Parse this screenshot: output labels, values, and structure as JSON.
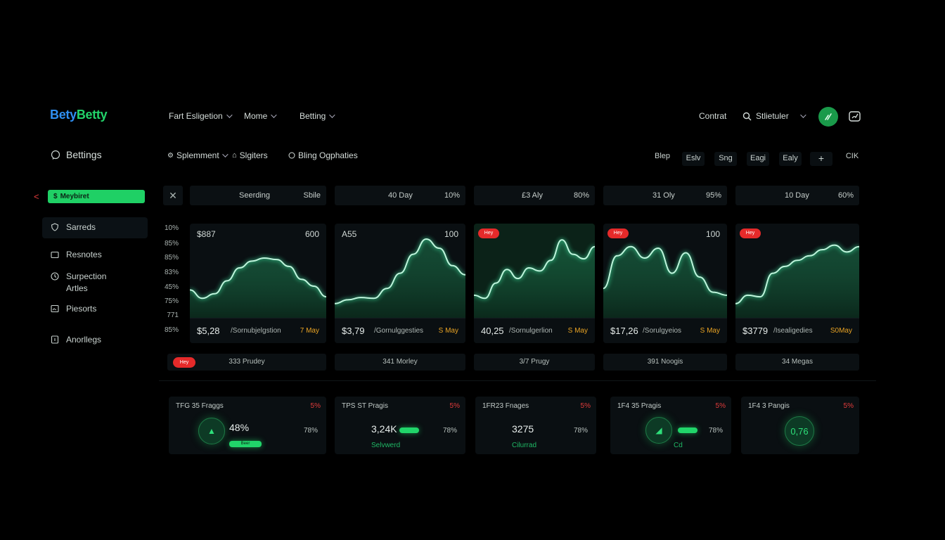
{
  "brand": {
    "part_a": "Bety",
    "part_b": "Betty",
    "color_a": "#2f8ff2",
    "color_b": "#22d36a"
  },
  "nav": {
    "items": [
      "Fart Esligetion",
      "Mome",
      "Betting"
    ]
  },
  "header": {
    "contact": "Contrat",
    "search_value": "Stlietuler",
    "avatar_icon": "leaf-icon",
    "message_icon": "chat-icon"
  },
  "sidebar": {
    "title": "Bettings",
    "active": "Meybiret",
    "items": [
      {
        "label": "Sarreds",
        "icon": "shield-icon"
      },
      {
        "label": "Resnotes",
        "icon": "folder-icon"
      },
      {
        "label": "Surpection\nArtles",
        "icon": "clock-icon"
      },
      {
        "label": "Piesorts",
        "icon": "image-icon"
      },
      {
        "label": "Anorllegs",
        "icon": "info-icon"
      }
    ]
  },
  "subheader": {
    "items": [
      "Splemment",
      "Slgiters",
      "Bling Ogphaties"
    ],
    "timeframes": [
      "Blep",
      "Eslv",
      "Sng",
      "Eagi",
      "Ealy",
      "+",
      "CIK"
    ]
  },
  "periods": [
    {
      "left": "Seerding",
      "right": "Sbile"
    },
    {
      "left": "40 Day",
      "right": "10%"
    },
    {
      "left": "£3 Aly",
      "right": "80%"
    },
    {
      "left": "31 Oly",
      "right": "95%"
    },
    {
      "left": "10 Day",
      "right": "60%"
    }
  ],
  "y_axis": [
    "10%",
    "85%",
    "85%",
    "83%",
    "45%",
    "75%",
    "771",
    "85%"
  ],
  "cards": [
    {
      "top_left": "$887",
      "top_right": "600",
      "badge": "",
      "value": "$5,28",
      "label": "/Sornubjelgstion",
      "other": "7 May",
      "curve": [
        0.33,
        0.22,
        0.28,
        0.45,
        0.62,
        0.71,
        0.75,
        0.73,
        0.64,
        0.47,
        0.38,
        0.24
      ]
    },
    {
      "top_left": "A55",
      "top_right": "100",
      "badge": "",
      "value": "$3,79",
      "label": "/Gornulggesties",
      "other": "S May",
      "curve": [
        0.15,
        0.2,
        0.23,
        0.22,
        0.35,
        0.55,
        0.8,
        1.0,
        0.88,
        0.65,
        0.53
      ]
    },
    {
      "top_left": "",
      "top_right": "",
      "badge": "Hey",
      "value": "40,25",
      "label": "/Sornulgerlion",
      "other": "S May",
      "curve": [
        0.26,
        0.22,
        0.42,
        0.6,
        0.48,
        0.62,
        0.58,
        0.72,
        0.99,
        0.8,
        0.74,
        0.9
      ]
    },
    {
      "top_left": "",
      "top_right": "100",
      "badge": "Hey",
      "value": "$17,26",
      "label": "/Sorulgyeios",
      "other": "S May",
      "curve": [
        0.35,
        0.78,
        0.9,
        0.75,
        0.88,
        0.55,
        0.82,
        0.5,
        0.3,
        0.26
      ]
    },
    {
      "top_left": "",
      "top_right": "",
      "badge": "Hey",
      "value": "$3779",
      "label": "/Isealigedies",
      "other": "S0May",
      "curve": [
        0.15,
        0.26,
        0.24,
        0.55,
        0.64,
        0.72,
        0.78,
        0.86,
        0.92,
        0.83,
        0.9
      ]
    }
  ],
  "labels": [
    "333 Prudey",
    "341 Morley",
    "3/7 Prugy",
    "391 Noogis",
    "34 Megas"
  ],
  "label_badge": "Hey",
  "bottom": [
    {
      "title": "TFG 35 Fraggs",
      "pct": "5%",
      "value": "48%",
      "right": "78%",
      "caption": "",
      "pill": true,
      "pill_label": "Beer",
      "circle": "▲"
    },
    {
      "title": "TPS ST Pragis",
      "pct": "5%",
      "value": "3,24K",
      "right": "78%",
      "caption": "Selvwerd",
      "pill": true,
      "circle": ""
    },
    {
      "title": "1FR23 Fnages",
      "pct": "5%",
      "value": "3275",
      "right": "78%",
      "caption": "Cilurrad",
      "pill": false,
      "circle": ""
    },
    {
      "title": "1F4 35 Pragis",
      "pct": "5%",
      "value": "",
      "right": "78%",
      "caption": "Cd",
      "pill": true,
      "circle": "◢"
    },
    {
      "title": "1F4 3 Pangis",
      "pct": "5%",
      "value": "",
      "right": "",
      "caption": "",
      "pill": false,
      "circle": "0,76"
    }
  ]
}
